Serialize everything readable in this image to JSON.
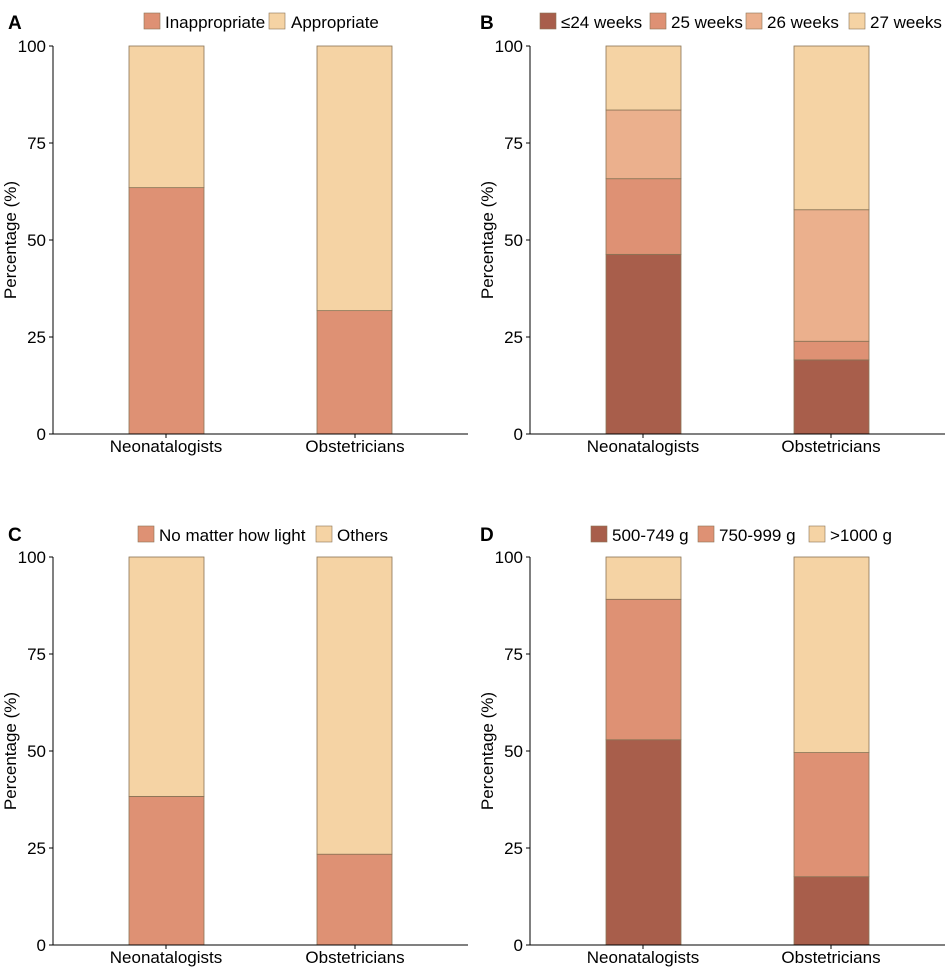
{
  "chart_data": [
    {
      "type": "bar",
      "stacked": true,
      "panel_label": "A",
      "categories": [
        "Neonatalogists",
        "Obstetricians"
      ],
      "series": [
        {
          "name": "Inappropriate",
          "color": "#DE9174",
          "values": [
            63.5,
            31.8
          ]
        },
        {
          "name": "Appropriate",
          "color": "#F5D3A4",
          "values": [
            36.5,
            68.2
          ]
        }
      ],
      "ylabel": "Percentage (%)",
      "ylim": [
        0,
        100
      ],
      "yticks": [
        "0",
        "25",
        "50",
        "75",
        "100"
      ],
      "legend_position": "top"
    },
    {
      "type": "bar",
      "stacked": true,
      "panel_label": "B",
      "categories": [
        "Neonatalogists",
        "Obstetricians"
      ],
      "series": [
        {
          "name": "≤24 weeks",
          "color": "#A85E4B",
          "values": [
            46.3,
            19.1
          ]
        },
        {
          "name": "25 weeks",
          "color": "#DE9174",
          "values": [
            19.5,
            4.8
          ]
        },
        {
          "name": "26 weeks",
          "color": "#EBB08D",
          "values": [
            17.7,
            33.9
          ]
        },
        {
          "name": "27 weeks",
          "color": "#F5D3A4",
          "values": [
            16.5,
            42.2
          ]
        }
      ],
      "ylabel": "Percentage (%)",
      "ylim": [
        0,
        100
      ],
      "yticks": [
        "0",
        "25",
        "50",
        "75",
        "100"
      ],
      "legend_position": "top"
    },
    {
      "type": "bar",
      "stacked": true,
      "panel_label": "C",
      "categories": [
        "Neonatalogists",
        "Obstetricians"
      ],
      "series": [
        {
          "name": "No matter how light",
          "color": "#DE9174",
          "values": [
            38.3,
            23.4
          ]
        },
        {
          "name": "Others",
          "color": "#F5D3A4",
          "values": [
            61.7,
            76.6
          ]
        }
      ],
      "ylabel": "Percentage (%)",
      "ylim": [
        0,
        100
      ],
      "yticks": [
        "0",
        "25",
        "50",
        "75",
        "100"
      ],
      "legend_position": "top"
    },
    {
      "type": "bar",
      "stacked": true,
      "panel_label": "D",
      "categories": [
        "Neonatalogists",
        "Obstetricians"
      ],
      "series": [
        {
          "name": "500-749 g",
          "color": "#A85E4B",
          "values": [
            52.9,
            17.6
          ]
        },
        {
          "name": "750-999 g",
          "color": "#DE9174",
          "values": [
            36.2,
            32.0
          ]
        },
        {
          "name": ">1000 g",
          "color": "#F5D3A4",
          "values": [
            10.9,
            50.4
          ]
        }
      ],
      "ylabel": "Percentage (%)",
      "ylim": [
        0,
        100
      ],
      "yticks": [
        "0",
        "25",
        "50",
        "75",
        "100"
      ],
      "legend_position": "top"
    }
  ]
}
